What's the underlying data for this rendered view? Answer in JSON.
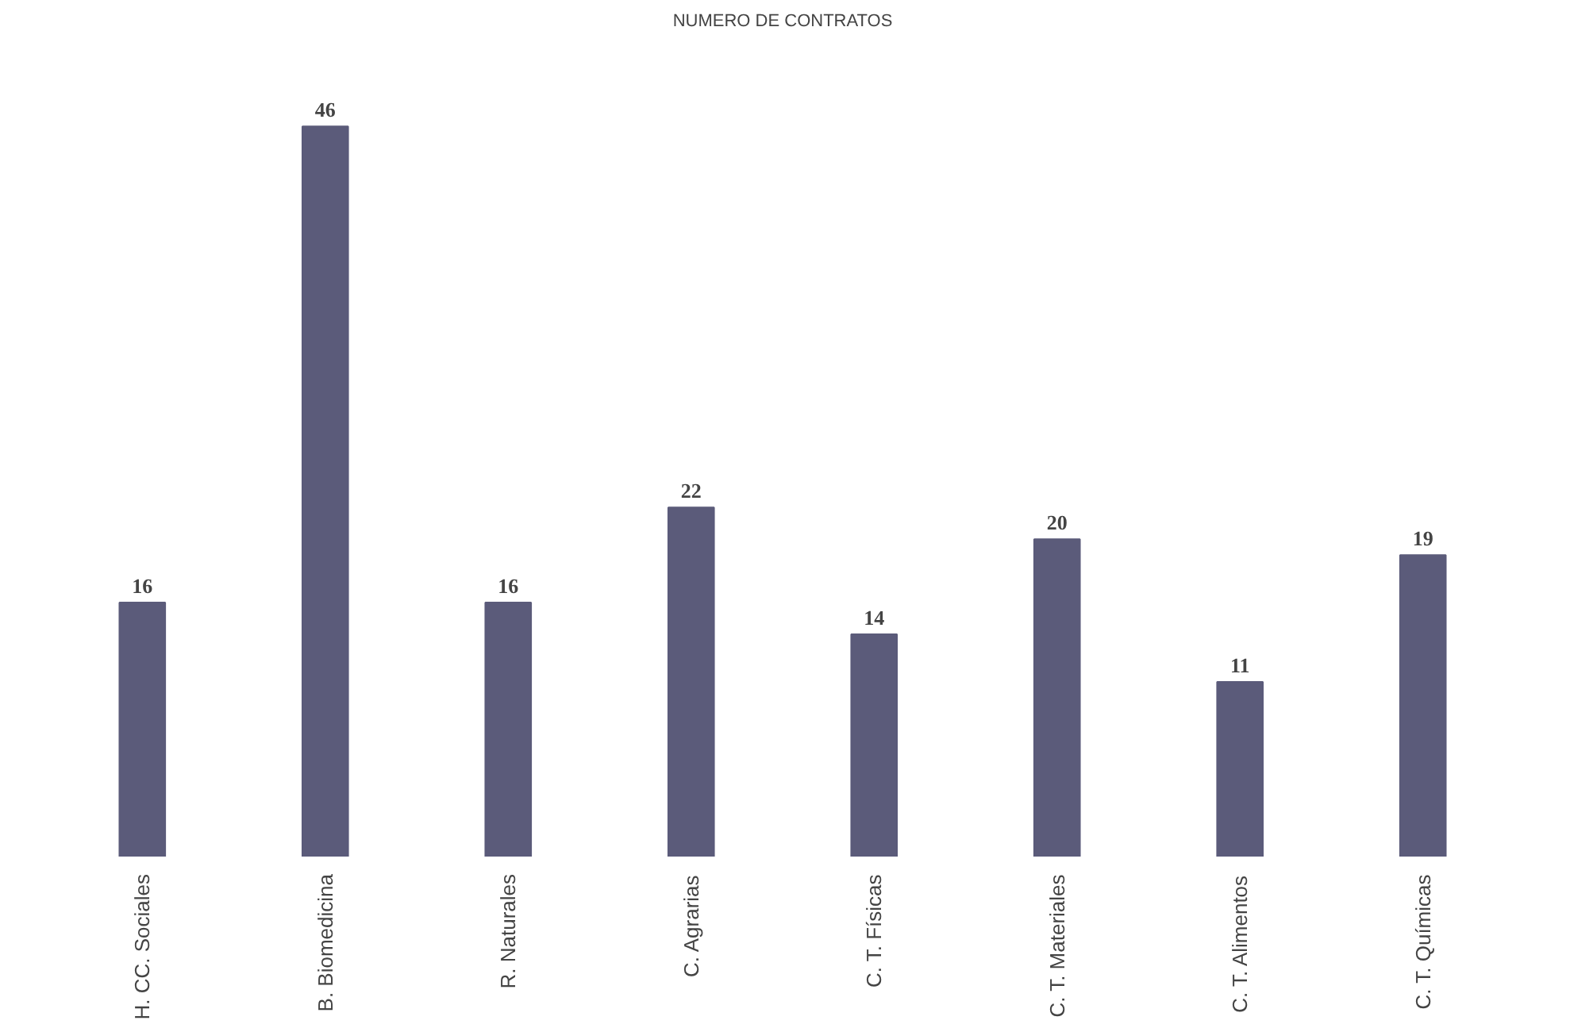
{
  "chart_data": {
    "type": "bar",
    "title": "NUMERO DE CONTRATOS",
    "categories": [
      "H. CC. Sociales",
      "B. Biomedicina",
      "R. Naturales",
      "C. Agrarias",
      "C. T. Físicas",
      "C. T. Materiales",
      "C. T. Alimentos",
      "C. T. Químicas"
    ],
    "values": [
      16,
      46,
      16,
      22,
      14,
      20,
      11,
      19
    ],
    "color": "#5b5b7a",
    "data_labels": true
  }
}
